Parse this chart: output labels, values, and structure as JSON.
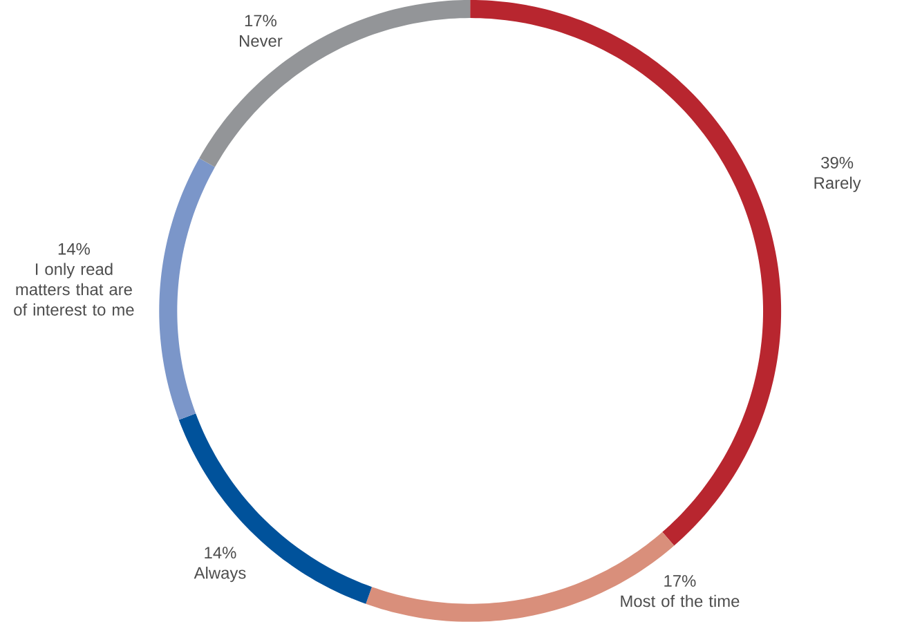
{
  "chart_data": {
    "type": "donut",
    "categories": [
      "Rarely",
      "Most of the time",
      "Always",
      "I only read matters that are of interest to me",
      "Never"
    ],
    "values": [
      39,
      17,
      14,
      14,
      17
    ],
    "value_labels": [
      "39%",
      "17%",
      "14%",
      "14%",
      "17%"
    ],
    "colors": [
      "#b8262f",
      "#d98f7b",
      "#00529b",
      "#7b96c9",
      "#939598"
    ]
  }
}
